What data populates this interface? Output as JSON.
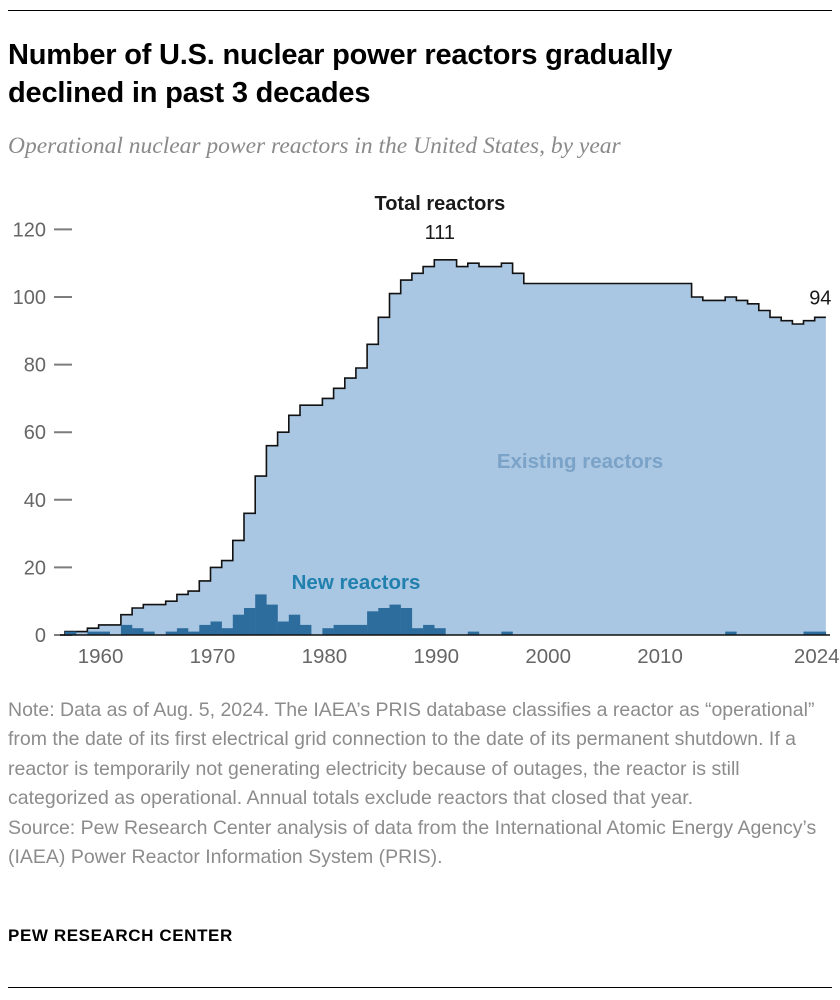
{
  "header": {
    "title_line1": "Number of U.S. nuclear power reactors gradually",
    "title_line2": "declined in past 3 decades",
    "subtitle": "Operational nuclear power reactors in the United States, by year"
  },
  "chart_data": {
    "type": "area",
    "title": "Operational nuclear power reactors in the United States, by year",
    "x": [
      1957,
      1958,
      1959,
      1960,
      1961,
      1962,
      1963,
      1964,
      1965,
      1966,
      1967,
      1968,
      1969,
      1970,
      1971,
      1972,
      1973,
      1974,
      1975,
      1976,
      1977,
      1978,
      1979,
      1980,
      1981,
      1982,
      1983,
      1984,
      1985,
      1986,
      1987,
      1988,
      1989,
      1990,
      1991,
      1992,
      1993,
      1994,
      1995,
      1996,
      1997,
      1998,
      1999,
      2000,
      2001,
      2002,
      2003,
      2004,
      2005,
      2006,
      2007,
      2008,
      2009,
      2010,
      2011,
      2012,
      2013,
      2014,
      2015,
      2016,
      2017,
      2018,
      2019,
      2020,
      2021,
      2022,
      2023,
      2024
    ],
    "series": [
      {
        "name": "Total reactors",
        "values": [
          1,
          1,
          2,
          3,
          3,
          6,
          8,
          9,
          9,
          10,
          12,
          13,
          16,
          20,
          22,
          28,
          36,
          47,
          56,
          60,
          65,
          68,
          68,
          70,
          73,
          76,
          79,
          86,
          94,
          101,
          105,
          107,
          109,
          111,
          111,
          109,
          110,
          109,
          109,
          110,
          107,
          104,
          104,
          104,
          104,
          104,
          104,
          104,
          104,
          104,
          104,
          104,
          104,
          104,
          104,
          104,
          100,
          99,
          99,
          100,
          99,
          98,
          96,
          94,
          93,
          92,
          93,
          94
        ]
      },
      {
        "name": "New reactors",
        "values": [
          1,
          0,
          1,
          1,
          0,
          3,
          2,
          1,
          0,
          1,
          2,
          1,
          3,
          4,
          2,
          6,
          8,
          12,
          9,
          4,
          6,
          3,
          0,
          2,
          3,
          3,
          3,
          7,
          8,
          9,
          8,
          2,
          3,
          2,
          0,
          0,
          1,
          0,
          0,
          1,
          0,
          0,
          0,
          0,
          0,
          0,
          0,
          0,
          0,
          0,
          0,
          0,
          0,
          0,
          0,
          0,
          0,
          0,
          0,
          1,
          0,
          0,
          0,
          0,
          0,
          0,
          1,
          1
        ]
      }
    ],
    "labels": {
      "total": "Total reactors",
      "existing": "Existing reactors",
      "new": "New reactors",
      "peak_value": "111",
      "peak_year": 1990,
      "end_value": "94",
      "end_year": 2024
    },
    "y_ticks": [
      0,
      20,
      40,
      60,
      80,
      100,
      120
    ],
    "x_ticks": [
      1960,
      1970,
      1980,
      1990,
      2000,
      2010,
      2024
    ],
    "ylim": [
      0,
      125
    ],
    "legend_position": "inside",
    "grid": false,
    "colors": {
      "area": "#a9c6e3",
      "bars": "#2d6d9d",
      "outline": "#111111",
      "existing_label": "#7ba3c7",
      "new_label": "#2180ad",
      "axis_text": "#666666",
      "annotation_text": "#1a1a1a"
    }
  },
  "footer": {
    "note": "Note: Data as of Aug. 5, 2024. The IAEA’s PRIS database classifies a reactor as “operational” from the date of its first electrical grid connection to the date of its permanent shutdown. If a reactor is temporarily not generating electricity because of outages, the reactor is still categorized as operational. Annual totals exclude reactors that closed that year.",
    "source": "Source: Pew Research Center analysis of data from the International Atomic Energy Agency’s (IAEA) Power Reactor Information System (PRIS).",
    "brand": "PEW RESEARCH CENTER"
  }
}
